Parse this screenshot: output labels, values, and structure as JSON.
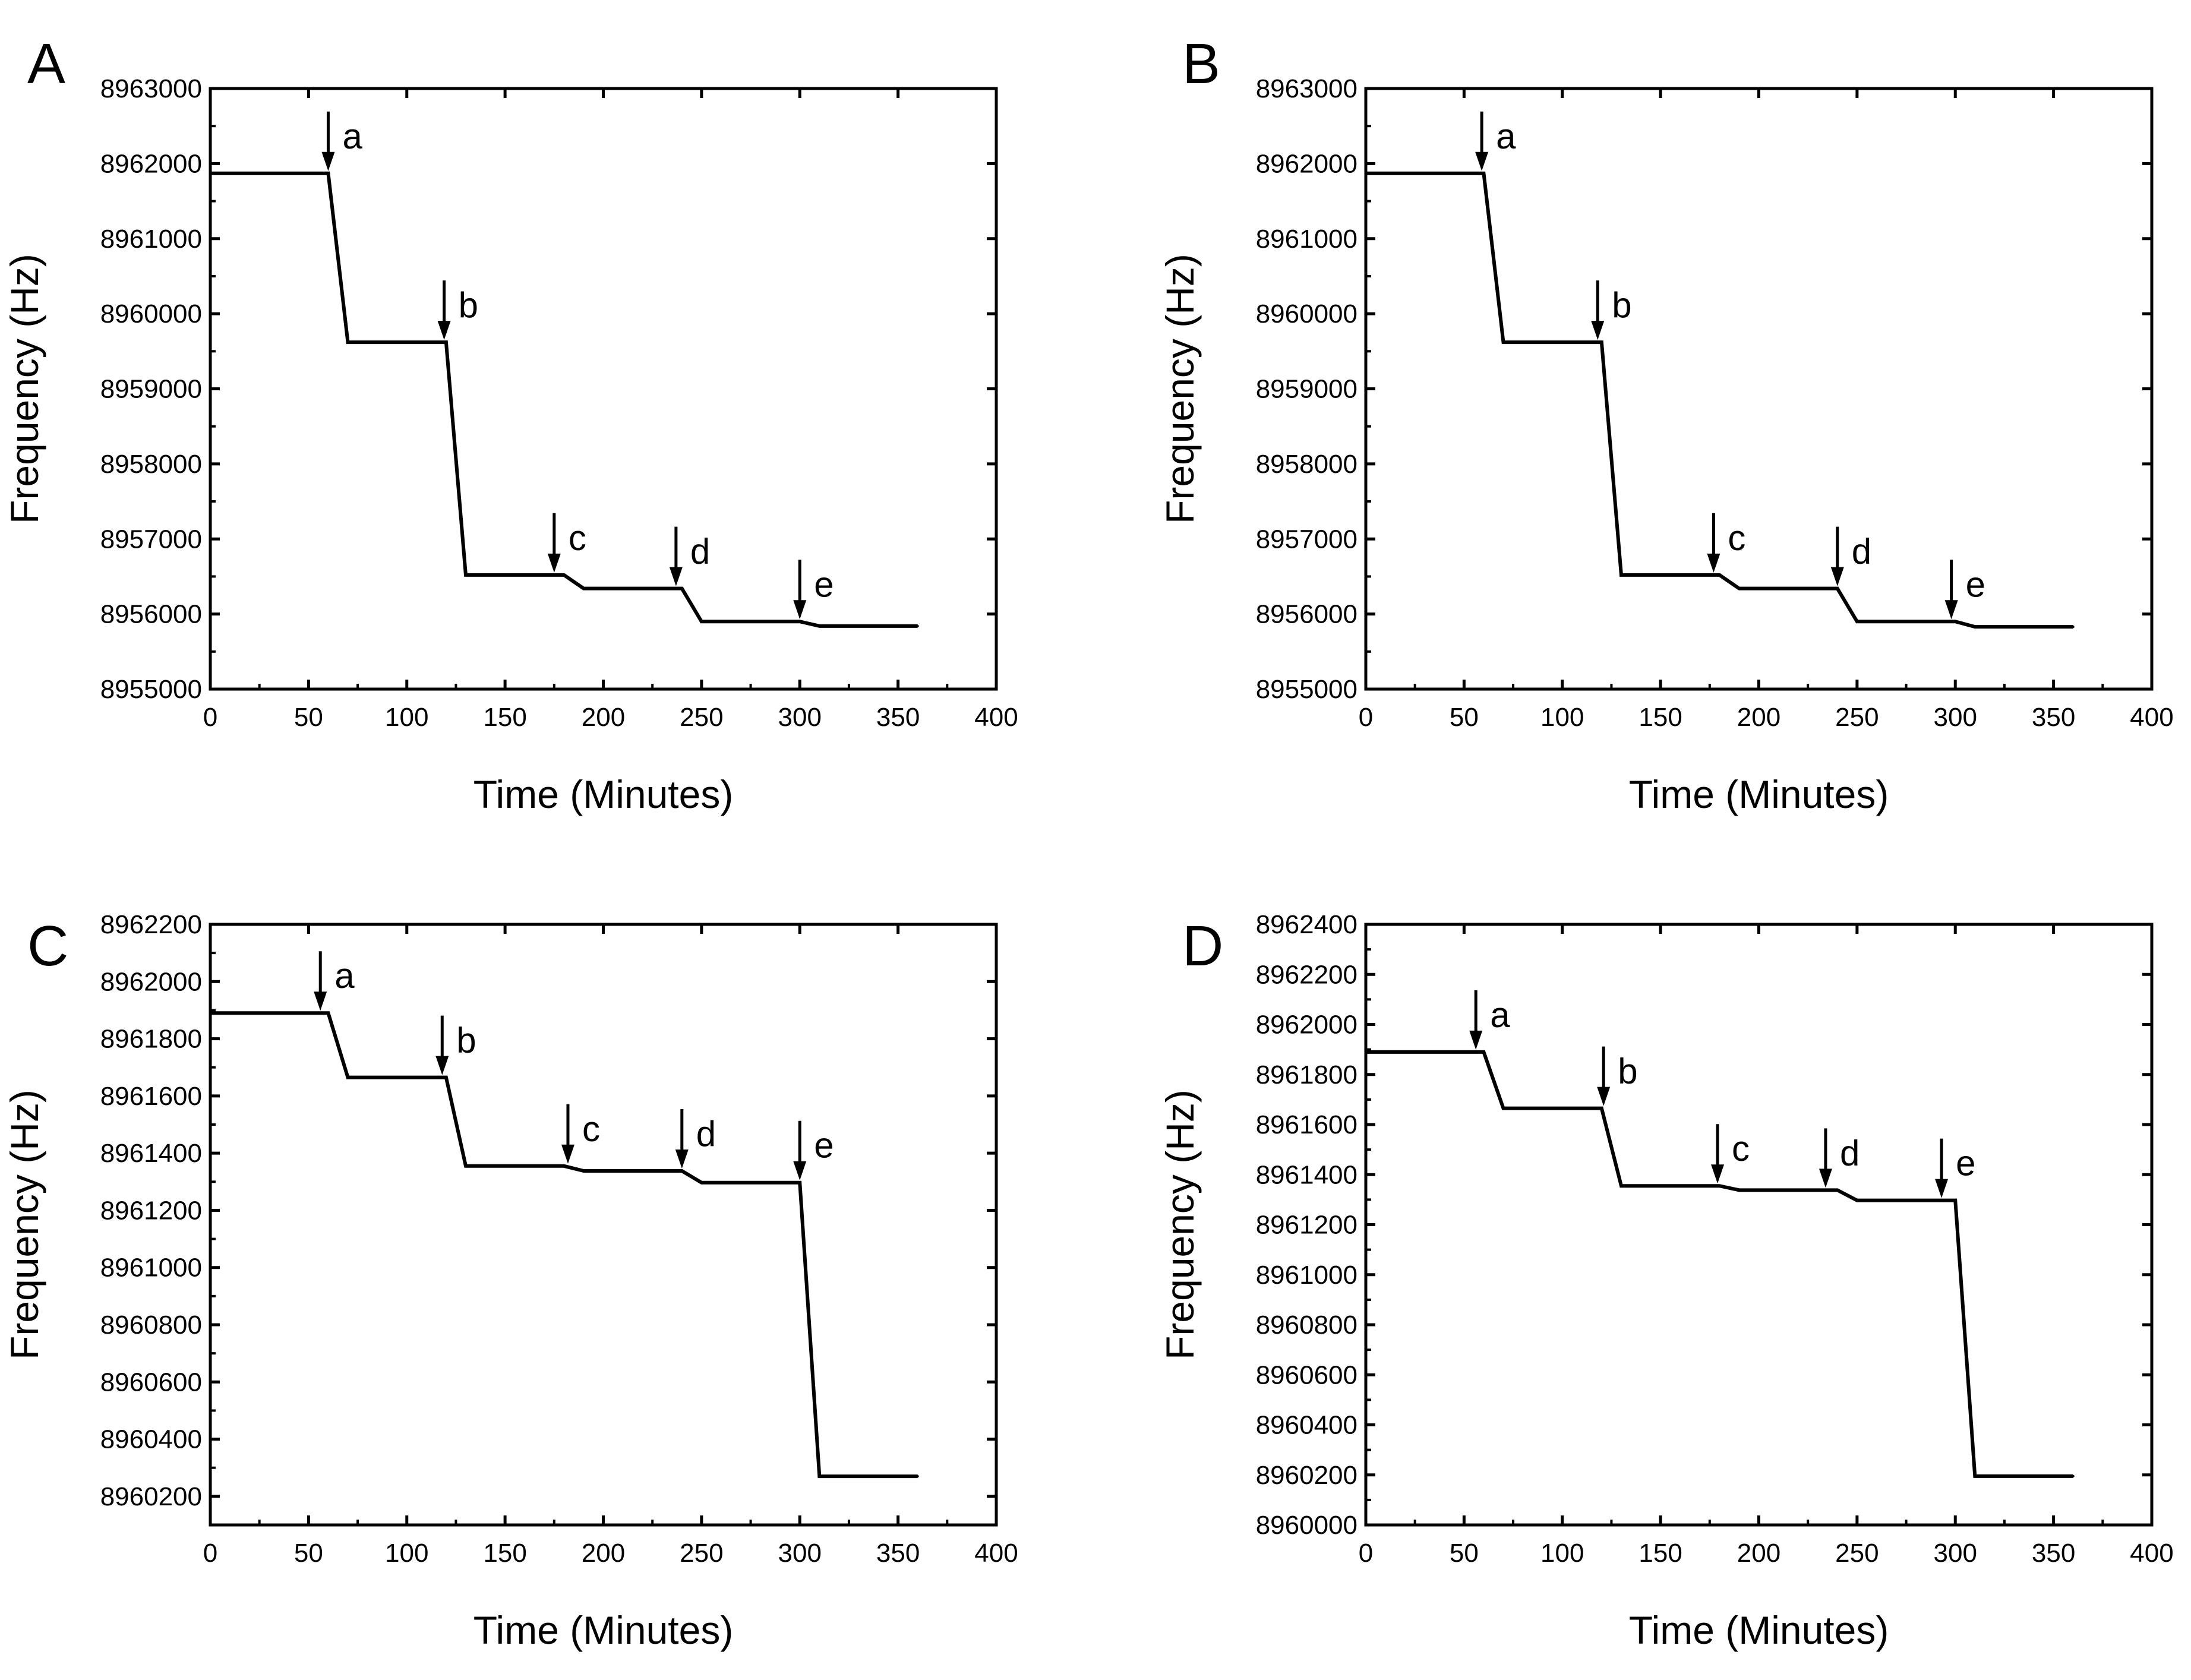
{
  "chart_data": [
    {
      "panel": "A",
      "type": "line",
      "xlabel": "Time (Minutes)",
      "ylabel": "Frequency (Hz)",
      "xlim": [
        0,
        400
      ],
      "ylim": [
        8955000,
        8963000
      ],
      "xticks": [
        "0",
        "50",
        "100",
        "150",
        "200",
        "250",
        "300",
        "350",
        "400"
      ],
      "yticks": [
        "8955000",
        "8956000",
        "8957000",
        "8958000",
        "8959000",
        "8960000",
        "8961000",
        "8962000",
        "8963000"
      ],
      "x": [
        0,
        60,
        70,
        120,
        130,
        180,
        190,
        240,
        250,
        300,
        310,
        360
      ],
      "y": [
        8961870,
        8961870,
        8959620,
        8959620,
        8956520,
        8956520,
        8956340,
        8956340,
        8955900,
        8955900,
        8955840,
        8955840
      ],
      "annotations": [
        {
          "label": "a",
          "x": 60,
          "y": 8961870
        },
        {
          "label": "b",
          "x": 119,
          "y": 8959620
        },
        {
          "label": "c",
          "x": 175,
          "y": 8956520
        },
        {
          "label": "d",
          "x": 237,
          "y": 8956340
        },
        {
          "label": "e",
          "x": 300,
          "y": 8955900
        }
      ]
    },
    {
      "panel": "B",
      "type": "line",
      "xlabel": "Time (Minutes)",
      "ylabel": "Frequency (Hz)",
      "xlim": [
        0,
        400
      ],
      "ylim": [
        8955000,
        8963000
      ],
      "xticks": [
        "0",
        "50",
        "100",
        "150",
        "200",
        "250",
        "300",
        "350",
        "400"
      ],
      "yticks": [
        "8955000",
        "8956000",
        "8957000",
        "8958000",
        "8959000",
        "8960000",
        "8961000",
        "8962000",
        "8963000"
      ],
      "x": [
        0,
        60,
        70,
        120,
        130,
        180,
        190,
        240,
        250,
        300,
        310,
        360
      ],
      "y": [
        8961870,
        8961870,
        8959620,
        8959620,
        8956520,
        8956520,
        8956340,
        8956340,
        8955900,
        8955900,
        8955830,
        8955830
      ],
      "annotations": [
        {
          "label": "a",
          "x": 59,
          "y": 8961870
        },
        {
          "label": "b",
          "x": 118,
          "y": 8959620
        },
        {
          "label": "c",
          "x": 177,
          "y": 8956520
        },
        {
          "label": "d",
          "x": 240,
          "y": 8956340
        },
        {
          "label": "e",
          "x": 298,
          "y": 8955900
        }
      ]
    },
    {
      "panel": "C",
      "type": "line",
      "xlabel": "Time (Minutes)",
      "ylabel": "Frequency (Hz)",
      "xlim": [
        0,
        400
      ],
      "ylim": [
        8960100,
        8962200
      ],
      "xticks": [
        "0",
        "50",
        "100",
        "150",
        "200",
        "250",
        "300",
        "350",
        "400"
      ],
      "yticks": [
        "8960200",
        "8960400",
        "8960600",
        "8960800",
        "8961000",
        "8961200",
        "8961400",
        "8961600",
        "8961800",
        "8962000",
        "8962200"
      ],
      "x": [
        0,
        60,
        70,
        120,
        130,
        180,
        190,
        240,
        250,
        300,
        310,
        360
      ],
      "y": [
        8961890,
        8961890,
        8961665,
        8961665,
        8961355,
        8961355,
        8961338,
        8961338,
        8961297,
        8961297,
        8960270,
        8960270
      ],
      "annotations": [
        {
          "label": "a",
          "x": 56,
          "y": 8961890
        },
        {
          "label": "b",
          "x": 118,
          "y": 8961665
        },
        {
          "label": "c",
          "x": 182,
          "y": 8961355
        },
        {
          "label": "d",
          "x": 240,
          "y": 8961338
        },
        {
          "label": "e",
          "x": 300,
          "y": 8961297
        }
      ]
    },
    {
      "panel": "D",
      "type": "line",
      "xlabel": "Time (Minutes)",
      "ylabel": "Frequency (Hz)",
      "xlim": [
        0,
        400
      ],
      "ylim": [
        8960000,
        8962400
      ],
      "xticks": [
        "0",
        "50",
        "100",
        "150",
        "200",
        "250",
        "300",
        "350",
        "400"
      ],
      "yticks": [
        "8960000",
        "8960200",
        "8960400",
        "8960600",
        "8960800",
        "8961000",
        "8961200",
        "8961400",
        "8961600",
        "8961800",
        "8962000",
        "8962200",
        "8962400"
      ],
      "x": [
        0,
        60,
        70,
        120,
        130,
        180,
        190,
        240,
        250,
        300,
        310,
        360
      ],
      "y": [
        8961890,
        8961890,
        8961665,
        8961665,
        8961355,
        8961355,
        8961338,
        8961338,
        8961297,
        8961297,
        8960195,
        8960195
      ],
      "annotations": [
        {
          "label": "a",
          "x": 56,
          "y": 8961890
        },
        {
          "label": "b",
          "x": 121,
          "y": 8961665
        },
        {
          "label": "c",
          "x": 179,
          "y": 8961355
        },
        {
          "label": "d",
          "x": 234,
          "y": 8961338
        },
        {
          "label": "e",
          "x": 293,
          "y": 8961297
        }
      ]
    }
  ],
  "colors": {
    "line": "#000000",
    "axis": "#000000",
    "background": "#ffffff"
  }
}
